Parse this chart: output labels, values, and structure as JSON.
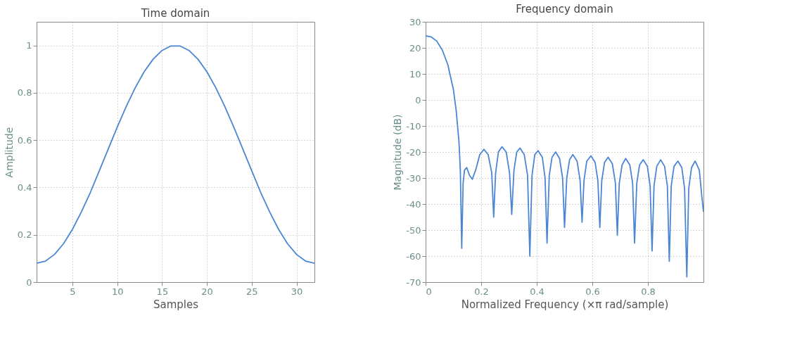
{
  "chart_data": [
    {
      "type": "line",
      "title": "Time domain",
      "xlabel": "Samples",
      "ylabel": "Amplitude",
      "x": [
        1,
        2,
        3,
        4,
        5,
        6,
        7,
        8,
        9,
        10,
        11,
        12,
        13,
        14,
        15,
        16,
        17,
        18,
        19,
        20,
        21,
        22,
        23,
        24,
        25,
        26,
        27,
        28,
        29,
        30,
        31,
        32
      ],
      "series": [
        {
          "color": "#4a86d4",
          "values": [
            0.08,
            0.089,
            0.117,
            0.162,
            0.223,
            0.297,
            0.379,
            0.471,
            0.563,
            0.655,
            0.742,
            0.821,
            0.889,
            0.942,
            0.979,
            0.998,
            0.998,
            0.979,
            0.942,
            0.889,
            0.821,
            0.742,
            0.655,
            0.563,
            0.471,
            0.379,
            0.297,
            0.223,
            0.162,
            0.117,
            0.089,
            0.08
          ]
        }
      ],
      "xlim": [
        1,
        32
      ],
      "xticks": [
        5,
        10,
        15,
        20,
        25,
        30
      ],
      "ylim": [
        0,
        1.1
      ],
      "yticks": [
        0,
        0.2,
        0.4,
        0.6,
        0.8,
        1
      ],
      "grid": true,
      "line_style": "solid",
      "marker": "none",
      "legend": false
    },
    {
      "type": "line",
      "title": "Frequency domain",
      "xlabel": "Normalized Frequency  (×π rad/sample)",
      "ylabel": "Magnitude (dB)",
      "x": [
        0,
        0.02,
        0.04,
        0.06,
        0.08,
        0.1,
        0.11,
        0.12,
        0.125,
        0.13,
        0.135,
        0.14,
        0.148,
        0.158,
        0.168,
        0.18,
        0.195,
        0.21,
        0.225,
        0.238,
        0.245,
        0.252,
        0.262,
        0.275,
        0.29,
        0.302,
        0.31,
        0.318,
        0.328,
        0.34,
        0.355,
        0.367,
        0.375,
        0.383,
        0.393,
        0.405,
        0.42,
        0.43,
        0.437,
        0.445,
        0.455,
        0.468,
        0.482,
        0.493,
        0.5,
        0.508,
        0.518,
        0.53,
        0.545,
        0.556,
        0.563,
        0.57,
        0.58,
        0.595,
        0.61,
        0.62,
        0.627,
        0.634,
        0.644,
        0.657,
        0.672,
        0.683,
        0.69,
        0.697,
        0.707,
        0.72,
        0.735,
        0.745,
        0.752,
        0.76,
        0.77,
        0.783,
        0.798,
        0.808,
        0.815,
        0.822,
        0.832,
        0.846,
        0.86,
        0.87,
        0.877,
        0.884,
        0.894,
        0.908,
        0.922,
        0.932,
        0.94,
        0.947,
        0.957,
        0.97,
        0.985,
        0.995,
        1.0
      ],
      "series": [
        {
          "color": "#4a86d4",
          "values": [
            24.6,
            24.2,
            22.6,
            19.2,
            13.5,
            4,
            -4,
            -16,
            -27,
            -57,
            -32,
            -27,
            -26,
            -29,
            -30.5,
            -27,
            -21,
            -19,
            -21,
            -28,
            -45,
            -28,
            -20,
            -18,
            -20,
            -28,
            -44,
            -27,
            -20,
            -18.5,
            -21,
            -29,
            -60,
            -29,
            -21,
            -19.5,
            -22,
            -30,
            -55,
            -29,
            -22,
            -20,
            -22.5,
            -30,
            -49,
            -30,
            -23,
            -21,
            -23.5,
            -31,
            -47,
            -31,
            -23.5,
            -21.5,
            -24,
            -31,
            -49,
            -31,
            -24,
            -22,
            -24.5,
            -32,
            -52,
            -32,
            -25,
            -22.5,
            -25,
            -32,
            -55,
            -32,
            -25,
            -23,
            -25.5,
            -33,
            -58,
            -33,
            -25.5,
            -23,
            -25.5,
            -33,
            -62,
            -33,
            -25.5,
            -23.5,
            -26,
            -34,
            -68,
            -34,
            -26,
            -23.5,
            -27,
            -38,
            -43
          ]
        }
      ],
      "xlim": [
        0,
        1
      ],
      "xticks": [
        0,
        0.2,
        0.4,
        0.6,
        0.8
      ],
      "ylim": [
        -70,
        30
      ],
      "yticks": [
        -70,
        -60,
        -50,
        -40,
        -30,
        -20,
        -10,
        0,
        10,
        20,
        30
      ],
      "grid": true,
      "line_style": "solid",
      "marker": "none",
      "legend": false
    }
  ]
}
